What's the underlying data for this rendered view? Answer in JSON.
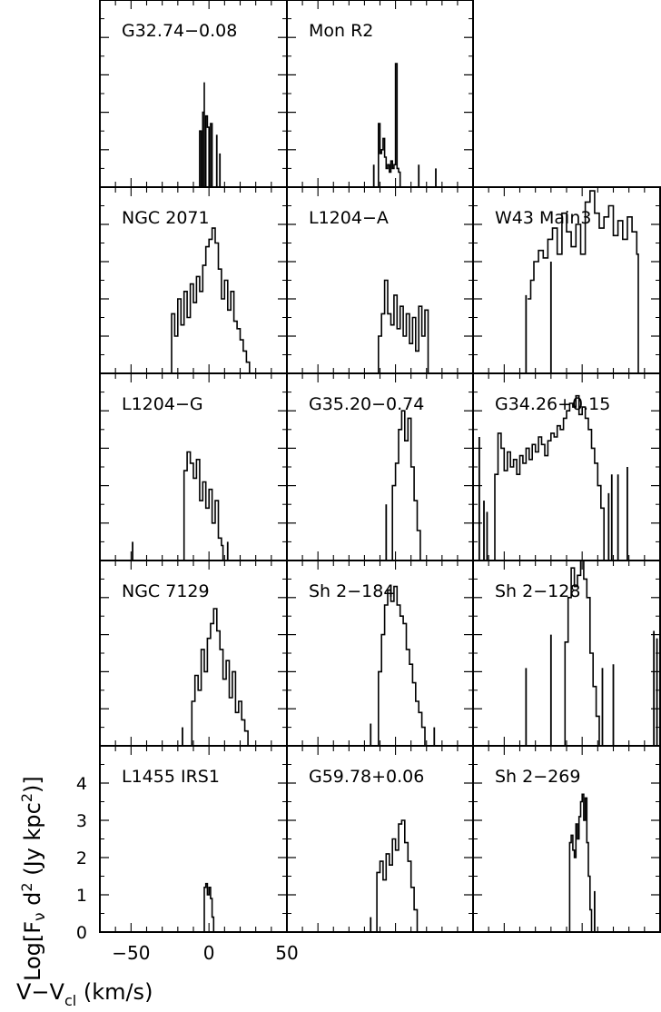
{
  "chart_data": {
    "type": "line",
    "description_note": "",
    "xlabel": "V−V",
    "xlabel_sub": "cl",
    "xlabel_unit": " (km/s)",
    "ylabel_pre": "Log[F",
    "ylabel_nu": "ν",
    "ylabel_mid": " d",
    "ylabel_sup1": "2",
    "ylabel_mid2": " (Jy kpc",
    "ylabel_sup2": "2",
    "ylabel_post": ")]",
    "xlim": [
      -70,
      50
    ],
    "ylim": [
      0,
      5
    ],
    "x_ticks": [
      -50,
      0,
      50
    ],
    "x_tick_labels": [
      "−50",
      "0",
      "50"
    ],
    "y_ticks": [
      0,
      1,
      2,
      3,
      4
    ],
    "y_tick_labels": [
      "0",
      "1",
      "2",
      "3",
      "4"
    ],
    "grid": {
      "rows": 5,
      "cols": 3
    },
    "panels": [
      {
        "name": "G32.74−0.08",
        "row": 0,
        "col": 0,
        "segments": [
          {
            "x": [
              -7,
              -6,
              -5,
              -5,
              -4,
              -3,
              -3,
              -2,
              -1,
              0,
              1,
              2,
              3
            ],
            "y": [
              0,
              1.5,
              1.2,
              0,
              2.0,
              2.8,
              0,
              1.9,
              1.6,
              0,
              1.7,
              0,
              0
            ]
          }
        ],
        "spikes": [
          [
            5,
            1.4
          ],
          [
            7,
            0.9
          ]
        ]
      },
      {
        "name": "Mon R2",
        "row": 0,
        "col": 1,
        "segments": [
          {
            "x": [
              -12,
              -11,
              -10,
              -9,
              -8,
              -7,
              -6,
              -5,
              -4,
              -3,
              -2,
              -1,
              0,
              1,
              2,
              3,
              4
            ],
            "y": [
              0,
              1.7,
              0.9,
              1.0,
              1.3,
              0.8,
              0.5,
              0.6,
              0.4,
              0.7,
              0.5,
              0.6,
              3.3,
              0.5,
              0.4,
              0,
              0
            ]
          }
        ],
        "spikes": [
          [
            -14,
            0.6
          ],
          [
            15,
            0.6
          ],
          [
            26,
            0.5
          ]
        ]
      },
      {
        "name": "NGC 2071",
        "row": 1,
        "col": 0,
        "segments": [
          {
            "x": [
              -26,
              -24,
              -22,
              -20,
              -18,
              -16,
              -14,
              -12,
              -10,
              -8,
              -6,
              -4,
              -2,
              0,
              2,
              4,
              6,
              8,
              10,
              12,
              14,
              16,
              18,
              20,
              22,
              24,
              26
            ],
            "y": [
              0,
              1.6,
              1.0,
              2.0,
              1.3,
              2.2,
              1.5,
              2.4,
              1.9,
              2.6,
              2.2,
              2.9,
              3.4,
              3.6,
              3.9,
              3.5,
              2.8,
              2.0,
              2.5,
              1.7,
              2.2,
              1.4,
              1.2,
              0.9,
              0.6,
              0.3,
              0
            ]
          }
        ],
        "spikes": []
      },
      {
        "name": "L1204−A",
        "row": 1,
        "col": 1,
        "segments": [
          {
            "x": [
              -13,
              -11,
              -9,
              -7,
              -5,
              -3,
              -1,
              1,
              3,
              5,
              7,
              9,
              11,
              13,
              15,
              17,
              19,
              21
            ],
            "y": [
              0,
              1.0,
              1.6,
              2.5,
              1.6,
              1.3,
              2.1,
              1.2,
              1.8,
              1.0,
              1.6,
              0.8,
              1.5,
              0.6,
              1.8,
              1.0,
              1.7,
              0
            ]
          }
        ],
        "spikes": []
      },
      {
        "name": "W43 Main3",
        "row": 1,
        "col": 2,
        "segments": [
          {
            "x": [
              -35,
              -33,
              -31,
              -28,
              -25,
              -22,
              -19,
              -16,
              -13,
              -10,
              -7,
              -4,
              -1,
              2,
              5,
              8,
              11,
              14,
              17,
              20,
              23,
              26,
              29,
              32,
              35,
              36
            ],
            "y": [
              2.0,
              2.5,
              3.0,
              3.3,
              3.1,
              3.6,
              3.9,
              3.2,
              4.3,
              3.8,
              3.4,
              4.0,
              3.2,
              4.6,
              4.9,
              4.3,
              3.9,
              4.2,
              4.5,
              3.7,
              4.1,
              3.6,
              4.2,
              3.8,
              3.2,
              0
            ]
          }
        ],
        "spikes": [
          [
            -36,
            2.1
          ],
          [
            -20,
            3.0
          ]
        ]
      },
      {
        "name": "L1204−G",
        "row": 2,
        "col": 0,
        "segments": [
          {
            "x": [
              -18,
              -16,
              -14,
              -12,
              -10,
              -8,
              -6,
              -4,
              -2,
              0,
              2,
              4,
              6,
              8,
              9
            ],
            "y": [
              0,
              2.4,
              2.9,
              2.6,
              2.2,
              2.7,
              1.6,
              2.1,
              1.4,
              1.9,
              1.0,
              1.6,
              0.6,
              0.4,
              0
            ]
          }
        ],
        "spikes": [
          [
            -49,
            0.5
          ],
          [
            12,
            0.5
          ]
        ]
      },
      {
        "name": "G35.20−0.74",
        "row": 2,
        "col": 1,
        "segments": [
          {
            "x": [
              -4,
              -2,
              0,
              2,
              4,
              6,
              8,
              10,
              12,
              14,
              16
            ],
            "y": [
              0,
              2.0,
              2.6,
              3.5,
              4.0,
              3.2,
              3.8,
              2.5,
              1.6,
              0.8,
              0
            ]
          }
        ],
        "spikes": [
          [
            -6,
            1.5
          ]
        ]
      },
      {
        "name": "G34.26+0.15",
        "row": 2,
        "col": 2,
        "segments": [
          {
            "x": [
              -58,
              -56,
              -54,
              -52,
              -50,
              -48,
              -46,
              -44,
              -42,
              -40,
              -38,
              -36,
              -34,
              -32,
              -30,
              -28,
              -26,
              -24,
              -22,
              -20,
              -18,
              -16,
              -14,
              -12,
              -10,
              -8,
              -6,
              -4,
              -2,
              0,
              2,
              4,
              6,
              8,
              10,
              12,
              14
            ],
            "y": [
              0,
              2.3,
              3.4,
              3.0,
              2.4,
              2.9,
              2.5,
              2.7,
              2.3,
              2.8,
              2.6,
              3.0,
              2.7,
              3.1,
              2.9,
              3.3,
              3.1,
              2.8,
              3.2,
              3.4,
              3.3,
              3.6,
              3.5,
              3.8,
              4.0,
              4.2,
              4.1,
              4.4,
              3.9,
              4.1,
              3.8,
              3.5,
              3.0,
              2.6,
              2.0,
              1.4,
              0
            ]
          }
        ],
        "spikes": [
          [
            -66,
            3.3
          ],
          [
            -63,
            1.6
          ],
          [
            -61,
            1.3
          ],
          [
            17,
            1.8
          ],
          [
            19,
            2.3
          ],
          [
            23,
            2.3
          ],
          [
            29,
            2.5
          ]
        ]
      },
      {
        "name": "NGC 7129",
        "row": 3,
        "col": 0,
        "segments": [
          {
            "x": [
              -13,
              -11,
              -9,
              -7,
              -5,
              -3,
              -1,
              1,
              3,
              5,
              7,
              9,
              11,
              13,
              15,
              17,
              19,
              21,
              23,
              25
            ],
            "y": [
              0,
              1.2,
              1.9,
              1.5,
              2.6,
              2.0,
              2.9,
              3.3,
              3.7,
              3.1,
              2.6,
              1.8,
              2.3,
              1.3,
              2.0,
              0.9,
              1.2,
              0.7,
              0.4,
              0
            ]
          }
        ],
        "spikes": [
          [
            -17,
            0.5
          ]
        ]
      },
      {
        "name": "Sh 2−184",
        "row": 3,
        "col": 1,
        "segments": [
          {
            "x": [
              -13,
              -11,
              -9,
              -7,
              -5,
              -3,
              -1,
              1,
              3,
              5,
              7,
              9,
              11,
              13,
              15,
              17,
              19
            ],
            "y": [
              0,
              2.0,
              3.0,
              3.8,
              4.2,
              3.9,
              4.3,
              3.8,
              3.5,
              3.3,
              2.6,
              2.2,
              1.7,
              1.2,
              0.9,
              0.5,
              0
            ]
          }
        ],
        "spikes": [
          [
            -16,
            0.6
          ],
          [
            25,
            0.5
          ]
        ]
      },
      {
        "name": "Sh 2−128",
        "row": 3,
        "col": 2,
        "segments": [
          {
            "x": [
              -13,
              -11,
              -9,
              -7,
              -5,
              -3,
              -1,
              1,
              3,
              5,
              7,
              9,
              11
            ],
            "y": [
              0,
              2.8,
              4.0,
              4.8,
              4.3,
              4.6,
              5.0,
              4.5,
              4.0,
              2.5,
              1.6,
              0.8,
              0
            ]
          }
        ],
        "spikes": [
          [
            -36,
            2.1
          ],
          [
            -20,
            3.0
          ],
          [
            13,
            2.1
          ],
          [
            20,
            2.2
          ],
          [
            46,
            3.1
          ],
          [
            48,
            2.9
          ],
          [
            50,
            3.0
          ]
        ]
      },
      {
        "name": "L1455 IRS1",
        "row": 4,
        "col": 0,
        "segments": [
          {
            "x": [
              -4,
              -3,
              -2,
              -1,
              0,
              1,
              2,
              3
            ],
            "y": [
              0,
              1.2,
              1.3,
              1.0,
              1.2,
              0.9,
              0.4,
              0
            ]
          }
        ],
        "spikes": []
      },
      {
        "name": "G59.78+0.06",
        "row": 4,
        "col": 1,
        "segments": [
          {
            "x": [
              -14,
              -12,
              -10,
              -8,
              -6,
              -4,
              -2,
              0,
              2,
              4,
              6,
              8,
              10,
              12,
              14
            ],
            "y": [
              0,
              1.6,
              1.9,
              1.4,
              2.1,
              1.8,
              2.5,
              2.2,
              2.9,
              3.0,
              2.4,
              1.9,
              1.2,
              0.6,
              0
            ]
          }
        ],
        "spikes": [
          [
            -16,
            0.4
          ]
        ]
      },
      {
        "name": "Sh 2−269",
        "row": 4,
        "col": 2,
        "segments": [
          {
            "x": [
              -9,
              -8,
              -7,
              -6,
              -5,
              -4,
              -3,
              -2,
              -1,
              0,
              1,
              2,
              3,
              4,
              5,
              6
            ],
            "y": [
              0,
              2.4,
              2.6,
              2.2,
              2.0,
              2.9,
              2.5,
              3.1,
              3.5,
              3.7,
              3.0,
              3.6,
              2.4,
              1.5,
              0.6,
              0
            ]
          }
        ],
        "spikes": [
          [
            8,
            1.1
          ]
        ]
      }
    ]
  }
}
